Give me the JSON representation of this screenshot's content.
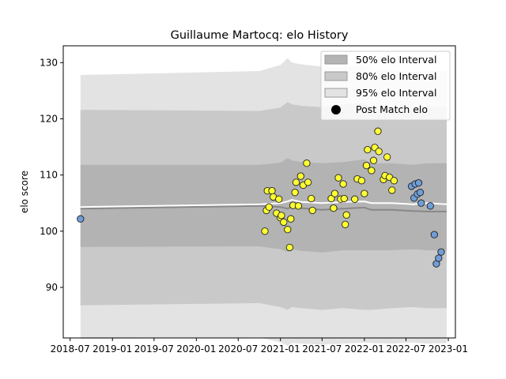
{
  "chart_data": {
    "type": "scatter",
    "title": "Guillaume Martocq: elo History",
    "xlabel": "",
    "ylabel": "elo score",
    "xlim": [
      "2018-06-01",
      "2023-02-01"
    ],
    "ylim": [
      81,
      133
    ],
    "x_ticks": [
      "2018-07",
      "2019-01",
      "2019-07",
      "2020-01",
      "2020-07",
      "2021-01",
      "2021-07",
      "2022-01",
      "2022-07",
      "2023-01"
    ],
    "y_ticks": [
      90,
      100,
      110,
      120,
      130
    ],
    "legend_position": "top-right",
    "legend": [
      {
        "label": "50% elo Interval",
        "color": "#b3b3b3"
      },
      {
        "label": "80% elo Interval",
        "color": "#c9c9c9"
      },
      {
        "label": "95% elo Interval",
        "color": "#e3e3e3"
      },
      {
        "label": "Post Match elo",
        "color": "#000000"
      }
    ],
    "colors": {
      "band_95": "#e3e3e3",
      "band_80": "#c9c9c9",
      "band_50": "#b3b3b3",
      "mean_line": "#ffffff",
      "median_line": "#888888",
      "point_highlight": "#ffff33",
      "point_normal": "#6f9ed8"
    },
    "bands": {
      "x": [
        "2018-08-15",
        "2020-10-01",
        "2021-01-01",
        "2021-02-01",
        "2021-02-20",
        "2021-04-01",
        "2021-07-01",
        "2021-10-01",
        "2022-01-01",
        "2022-02-01",
        "2022-05-01",
        "2022-08-01",
        "2022-10-01",
        "2022-12-25"
      ],
      "mean": [
        104.3,
        104.8,
        105.0,
        105.3,
        105.6,
        105.2,
        105.0,
        105.2,
        105.3,
        105.0,
        105.0,
        104.8,
        105.0,
        104.8
      ],
      "median": [
        104.0,
        104.5,
        104.3,
        104.0,
        104.4,
        104.1,
        103.8,
        104.0,
        104.2,
        103.8,
        103.8,
        103.6,
        103.5,
        103.5
      ],
      "p50": [
        [
          97.2,
          111.8
        ],
        [
          97.3,
          111.8
        ],
        [
          96.8,
          112.2
        ],
        [
          96.3,
          113.0
        ],
        [
          96.8,
          112.6
        ],
        [
          96.5,
          112.3
        ],
        [
          96.2,
          112.1
        ],
        [
          96.6,
          112.3
        ],
        [
          96.6,
          112.8
        ],
        [
          96.6,
          112.1
        ],
        [
          96.6,
          112.1
        ],
        [
          96.8,
          111.8
        ],
        [
          96.6,
          112.1
        ],
        [
          96.6,
          112.1
        ]
      ],
      "p80": [
        [
          86.8,
          121.6
        ],
        [
          87.2,
          121.4
        ],
        [
          86.5,
          122.0
        ],
        [
          86.0,
          123.0
        ],
        [
          86.5,
          122.6
        ],
        [
          86.3,
          122.3
        ],
        [
          86.0,
          122.1
        ],
        [
          86.3,
          122.5
        ],
        [
          86.0,
          122.8
        ],
        [
          86.0,
          122.1
        ],
        [
          86.3,
          122.1
        ],
        [
          86.5,
          121.8
        ],
        [
          86.3,
          122.1
        ],
        [
          86.3,
          122.1
        ]
      ],
      "p95": [
        [
          80.8,
          127.8
        ],
        [
          81.1,
          128.5
        ],
        [
          80.2,
          129.6
        ],
        [
          79.6,
          130.8
        ],
        [
          80.1,
          130.0
        ],
        [
          80.0,
          129.7
        ],
        [
          79.8,
          129.3
        ],
        [
          80.0,
          129.3
        ],
        [
          80.2,
          129.6
        ],
        [
          80.1,
          128.7
        ],
        [
          80.0,
          128.6
        ],
        [
          80.2,
          128.4
        ],
        [
          80.0,
          128.5
        ],
        [
          80.1,
          128.5
        ]
      ]
    },
    "series": [
      {
        "kind": "highlight",
        "points": [
          [
            "2020-10-25",
            100.0
          ],
          [
            "2020-11-01",
            103.7
          ],
          [
            "2020-11-05",
            107.2
          ],
          [
            "2020-11-12",
            104.3
          ],
          [
            "2020-11-25",
            107.2
          ],
          [
            "2020-12-01",
            106.1
          ],
          [
            "2020-12-15",
            103.2
          ],
          [
            "2020-12-25",
            105.7
          ],
          [
            "2021-01-01",
            102.4
          ],
          [
            "2021-01-05",
            102.8
          ],
          [
            "2021-01-15",
            101.6
          ],
          [
            "2021-02-01",
            100.3
          ],
          [
            "2021-02-10",
            97.1
          ],
          [
            "2021-02-15",
            102.2
          ],
          [
            "2021-02-25",
            104.6
          ],
          [
            "2021-03-05",
            106.9
          ],
          [
            "2021-03-10",
            108.7
          ],
          [
            "2021-03-20",
            104.5
          ],
          [
            "2021-03-30",
            109.8
          ],
          [
            "2021-04-10",
            108.2
          ],
          [
            "2021-04-25",
            112.1
          ],
          [
            "2021-05-01",
            108.7
          ],
          [
            "2021-05-15",
            105.8
          ],
          [
            "2021-05-20",
            103.7
          ],
          [
            "2021-08-10",
            105.8
          ],
          [
            "2021-08-20",
            104.1
          ],
          [
            "2021-08-25",
            106.7
          ],
          [
            "2021-09-10",
            109.5
          ],
          [
            "2021-09-20",
            105.7
          ],
          [
            "2021-10-01",
            108.4
          ],
          [
            "2021-10-05",
            105.8
          ],
          [
            "2021-10-10",
            101.2
          ],
          [
            "2021-10-15",
            102.9
          ],
          [
            "2021-11-20",
            105.7
          ],
          [
            "2021-12-01",
            109.3
          ],
          [
            "2021-12-20",
            109.0
          ],
          [
            "2022-01-01",
            106.7
          ],
          [
            "2022-01-10",
            111.7
          ],
          [
            "2022-01-15",
            114.5
          ],
          [
            "2022-02-01",
            110.8
          ],
          [
            "2022-02-10",
            112.6
          ],
          [
            "2022-02-15",
            114.9
          ],
          [
            "2022-03-01",
            117.8
          ],
          [
            "2022-03-05",
            114.2
          ],
          [
            "2022-03-25",
            109.2
          ],
          [
            "2022-04-01",
            109.9
          ],
          [
            "2022-04-10",
            113.2
          ],
          [
            "2022-04-20",
            109.6
          ],
          [
            "2022-05-01",
            107.3
          ],
          [
            "2022-05-10",
            109.0
          ]
        ]
      },
      {
        "kind": "normal",
        "points": [
          [
            "2018-08-15",
            102.2
          ],
          [
            "2022-07-25",
            108.0
          ],
          [
            "2022-08-05",
            105.9
          ],
          [
            "2022-08-10",
            108.4
          ],
          [
            "2022-08-20",
            106.6
          ],
          [
            "2022-08-25",
            108.6
          ],
          [
            "2022-09-01",
            106.9
          ],
          [
            "2022-09-05",
            105.0
          ],
          [
            "2022-10-15",
            104.5
          ],
          [
            "2022-11-01",
            99.4
          ],
          [
            "2022-11-10",
            94.2
          ],
          [
            "2022-11-20",
            95.2
          ],
          [
            "2022-12-01",
            96.3
          ]
        ]
      }
    ]
  }
}
